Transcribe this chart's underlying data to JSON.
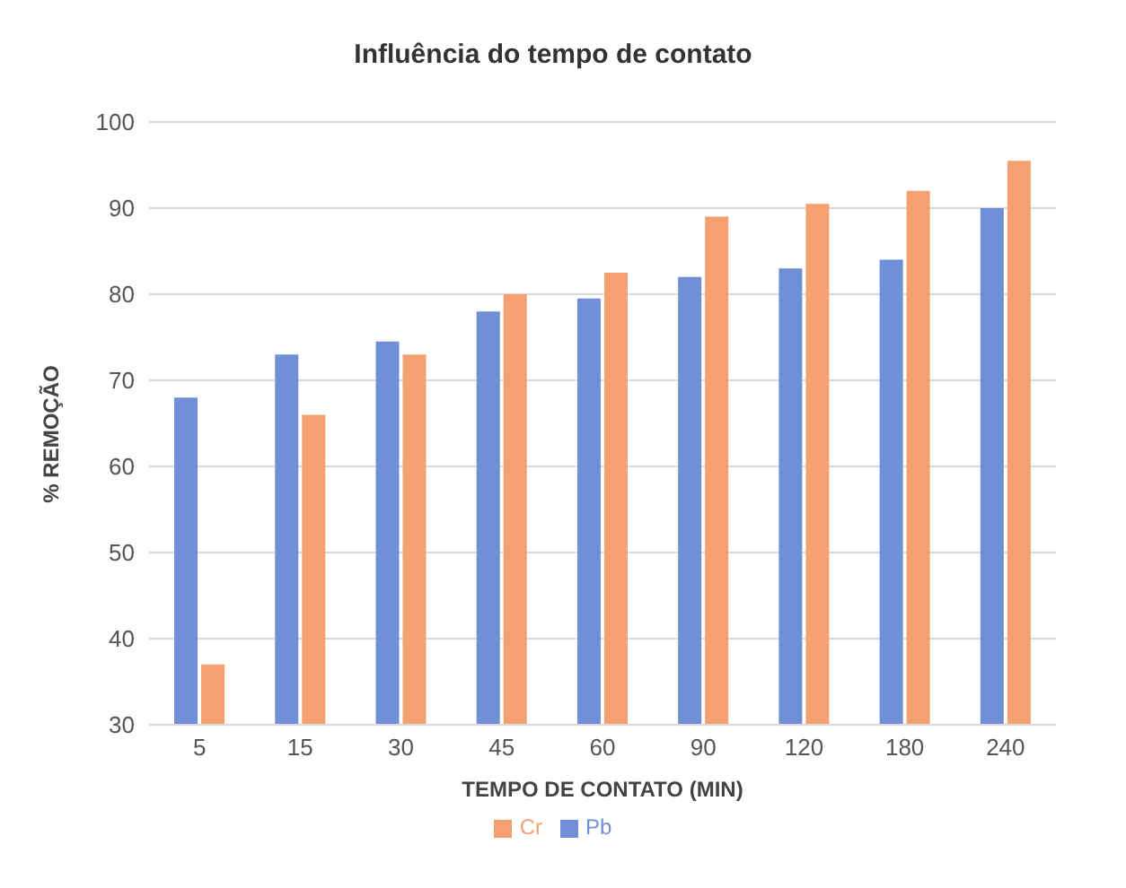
{
  "chart_data": {
    "type": "bar",
    "title": "Influência do tempo de contato",
    "xlabel": "TEMPO DE CONTATO (MIN)",
    "ylabel": "% REMOÇÃO",
    "categories": [
      "5",
      "15",
      "30",
      "45",
      "60",
      "90",
      "120",
      "180",
      "240"
    ],
    "series": [
      {
        "name": "Pb",
        "color": "#6f8fd6",
        "values": [
          68,
          73,
          74.5,
          78,
          79.5,
          82,
          83,
          84,
          90
        ]
      },
      {
        "name": "Cr",
        "color": "#f4a070",
        "values": [
          37,
          66,
          73,
          80,
          82.5,
          89,
          90.5,
          92,
          95.5
        ]
      }
    ],
    "ylim": [
      30,
      100
    ],
    "yticks": [
      30,
      40,
      50,
      60,
      70,
      80,
      90,
      100
    ],
    "grid": "y",
    "legend": "bottom"
  }
}
